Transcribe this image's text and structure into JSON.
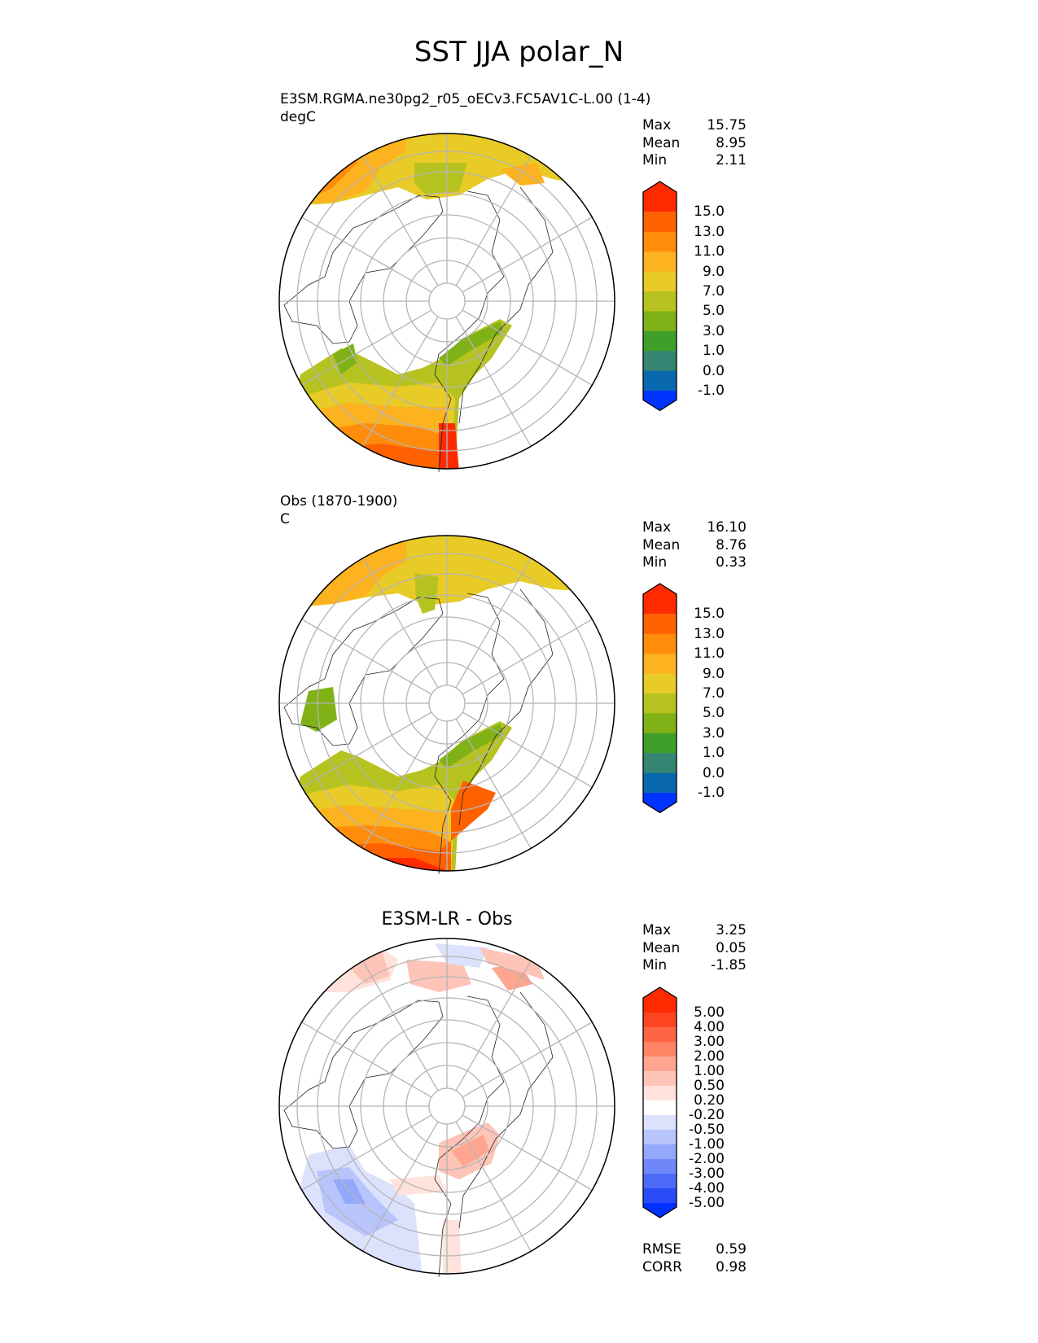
{
  "title": "SST JJA polar_N",
  "panels": [
    {
      "subtitle": [
        "E3SM.RGMA.ne30pg2_r05_oECv3.FC5AV1C-L.00 (1-4)",
        "degC"
      ],
      "stats": [
        {
          "label": "Max",
          "value": "15.75"
        },
        {
          "label": "Mean",
          "value": "8.95"
        },
        {
          "label": "Min",
          "value": "2.11"
        }
      ],
      "colorbar": {
        "labels": [
          "15.0",
          "13.0",
          "11.0",
          "9.0",
          "7.0",
          "5.0",
          "3.0",
          "1.0",
          "0.0",
          "-1.0"
        ],
        "colors": [
          "#ff2a00",
          "#ff6100",
          "#ff8c0a",
          "#fdb21f",
          "#e8cb27",
          "#b6c21f",
          "#80b217",
          "#3e9f2b",
          "#348672",
          "#0a69ae",
          "#0033ff"
        ]
      }
    },
    {
      "subtitle": [
        "Obs (1870-1900)",
        "C"
      ],
      "stats": [
        {
          "label": "Max",
          "value": "16.10"
        },
        {
          "label": "Mean",
          "value": "8.76"
        },
        {
          "label": "Min",
          "value": "0.33"
        }
      ],
      "colorbar": {
        "labels": [
          "15.0",
          "13.0",
          "11.0",
          "9.0",
          "7.0",
          "5.0",
          "3.0",
          "1.0",
          "0.0",
          "-1.0"
        ],
        "colors": [
          "#ff2a00",
          "#ff6100",
          "#ff8c0a",
          "#fdb21f",
          "#e8cb27",
          "#b6c21f",
          "#80b217",
          "#3e9f2b",
          "#348672",
          "#0a69ae",
          "#0033ff"
        ]
      }
    },
    {
      "title": "E3SM-LR - Obs",
      "stats": [
        {
          "label": "Max",
          "value": "3.25"
        },
        {
          "label": "Mean",
          "value": "0.05"
        },
        {
          "label": "Min",
          "value": "-1.85"
        }
      ],
      "colorbar": {
        "labels": [
          "5.00",
          "4.00",
          "3.00",
          "2.00",
          "1.00",
          "0.50",
          "0.20",
          "-0.20",
          "-0.50",
          "-1.00",
          "-2.00",
          "-3.00",
          "-4.00",
          "-5.00"
        ],
        "colors": [
          "#ff2a00",
          "#ff4422",
          "#ff6444",
          "#ff8466",
          "#ffa590",
          "#ffc4b8",
          "#ffe2dc",
          "#ffffff",
          "#dce2fc",
          "#b8c4fc",
          "#94a8fb",
          "#6f88f9",
          "#4c6af8",
          "#2a4cf7",
          "#0030ff"
        ]
      },
      "metrics": [
        {
          "label": "RMSE",
          "value": "0.59"
        },
        {
          "label": "CORR",
          "value": "0.98"
        }
      ]
    }
  ]
}
